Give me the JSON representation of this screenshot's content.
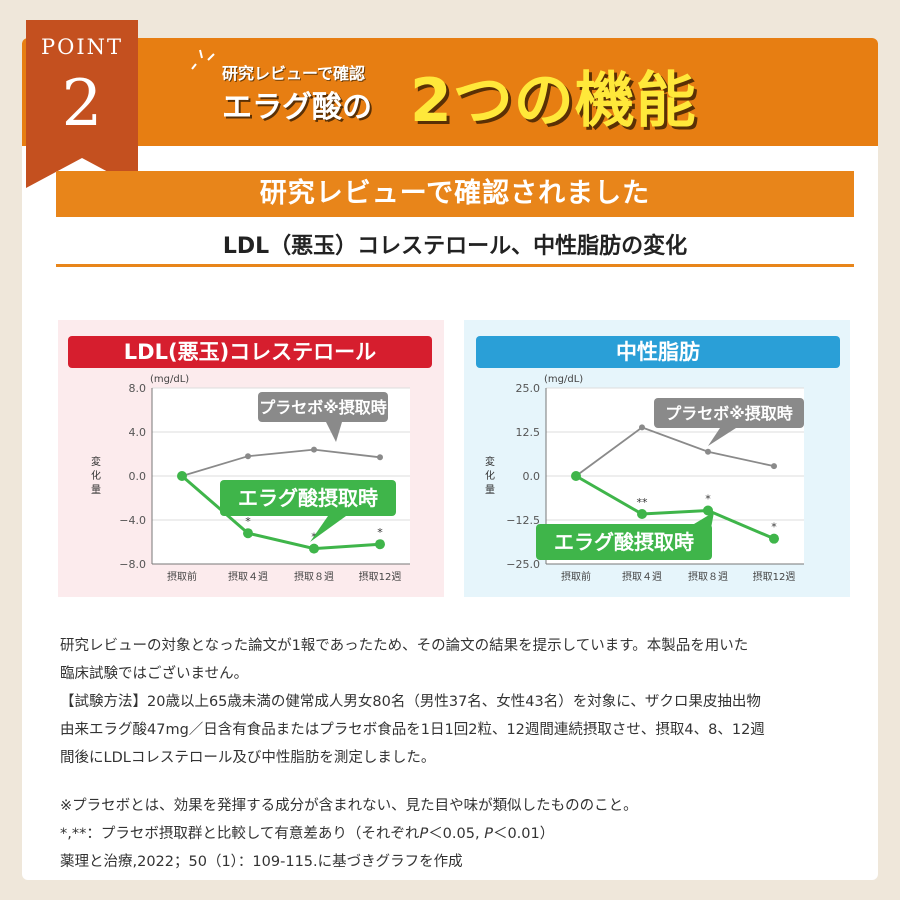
{
  "header": {
    "ribbon_label": "POINT",
    "ribbon_number": "2",
    "small_title": "研究レビューで確認",
    "mid_title": "エラグ酸の",
    "big_title": "2つの機能",
    "colors": {
      "orange": "#e77e12",
      "ribbon": "#c4501f",
      "yellow": "#ffe83a"
    }
  },
  "banner": "研究レビューで確認されました",
  "section_title": "LDL（悪玉）コレステロール、中性脂肪の変化",
  "chart_data": [
    {
      "type": "line",
      "title": "LDL(悪玉)コレステロール",
      "unit": "(mg/dL)",
      "ylabel": "変化量",
      "categories": [
        "摂取前",
        "摂取４週",
        "摂取８週",
        "摂取12週"
      ],
      "ylim": [
        -8.0,
        8.0
      ],
      "yticks": [
        "8.0",
        "4.0",
        "0.0",
        "−4.0",
        "−8.0"
      ],
      "ytick_values": [
        8,
        4,
        0,
        -4,
        -8
      ],
      "series": [
        {
          "name": "プラセボ※摂取時",
          "color": "#8a8a8a",
          "values": [
            0,
            1.8,
            2.4,
            1.7
          ],
          "marks": [
            "",
            "",
            "",
            ""
          ]
        },
        {
          "name": "エラグ酸摂取時",
          "color": "#3fb54a",
          "values": [
            0,
            -5.2,
            -6.6,
            -6.2
          ],
          "marks": [
            "",
            "*",
            "*",
            "*"
          ]
        }
      ],
      "grid": true,
      "accent": "#d61e2e"
    },
    {
      "type": "line",
      "title": "中性脂肪",
      "unit": "(mg/dL)",
      "ylabel": "変化量",
      "categories": [
        "摂取前",
        "摂取４週",
        "摂取８週",
        "摂取12週"
      ],
      "ylim": [
        -25.0,
        25.0
      ],
      "yticks": [
        "25.0",
        "12.5",
        "0.0",
        "−12.5",
        "−25.0"
      ],
      "ytick_values": [
        25,
        12.5,
        0,
        -12.5,
        -25
      ],
      "series": [
        {
          "name": "プラセボ※摂取時",
          "color": "#8a8a8a",
          "values": [
            0,
            13.8,
            6.9,
            2.8
          ],
          "marks": [
            "",
            "",
            "",
            ""
          ]
        },
        {
          "name": "エラグ酸摂取時",
          "color": "#3fb54a",
          "values": [
            0,
            -10.8,
            -9.8,
            -17.8
          ],
          "marks": [
            "",
            "**",
            "*",
            "*"
          ]
        }
      ],
      "grid": true,
      "accent": "#2a9fd7"
    }
  ],
  "notes": {
    "p1": "研究レビューの対象となった論文が1報であったため、その論文の結果を提示しています。本製品を用いた",
    "p2": "臨床試験ではございません。",
    "p3": "【試験方法】20歳以上65歳未満の健常成人男女80名（男性37名、女性43名）を対象に、ザクロ果皮抽出物",
    "p4": "由来エラグ酸47mg／日含有食品またはプラセボ食品を1日1回2粒、12週間連続摂取させ、摂取4、8、12週",
    "p5": "間後にLDLコレステロール及び中性脂肪を測定しました。",
    "p6": "※プラセボとは、効果を発揮する成分が含まれない、見た目や味が類似したもののこと。",
    "p7a": "*,**：プラセボ摂取群と比較して有意差あり（それぞれ",
    "p7b": "P",
    "p7c": "＜0.05, ",
    "p7d": "P",
    "p7e": "＜0.01）",
    "p8": "薬理と治療,2022；50（1）：109-115.に基づきグラフを作成"
  }
}
